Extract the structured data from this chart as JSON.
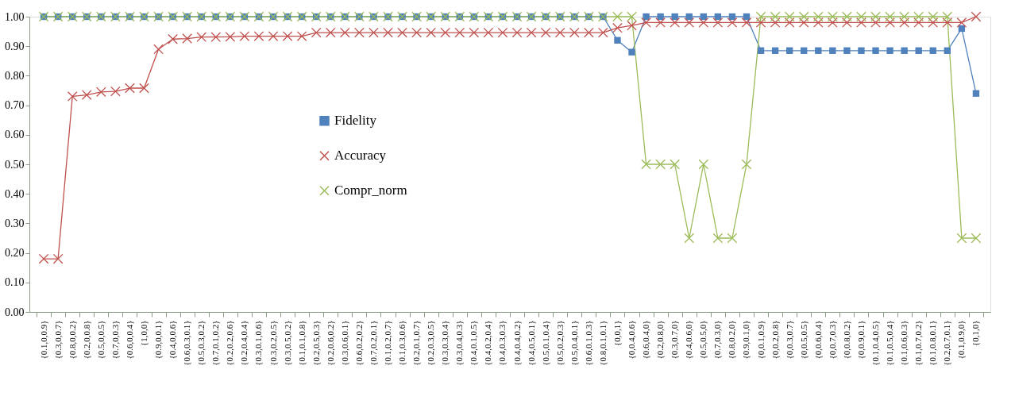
{
  "chart_data": {
    "type": "line",
    "categories": [
      "{0.1,0,0.9}",
      "{0.3,0,0.7}",
      "{0.8,0,0.2}",
      "{0.2,0,0.8}",
      "{0.5,0,0.5}",
      "{0.7,0,0.3}",
      "{0.6,0,0.4}",
      "{1,0,0}",
      "{0.9,0,0.1}",
      "{0.4,0,0.6}",
      "{0.6,0.3,0.1}",
      "{0.5,0.3,0.2}",
      "{0.7,0.1,0.2}",
      "{0.2,0.2,0.6}",
      "{0.2,0.4,0.4}",
      "{0.3,0.1,0.6}",
      "{0.3,0.2,0.5}",
      "{0.3,0.5,0.2}",
      "{0.1,0.1,0.8}",
      "{0.2,0.5,0.3}",
      "{0.2,0.6,0.2}",
      "{0.3,0.6,0.1}",
      "{0.6,0.2,0.2}",
      "{0.7,0.2,0.1}",
      "{0.1,0.2,0.7}",
      "{0.1,0.3,0.6}",
      "{0.2,0.1,0.7}",
      "{0.2,0.3,0.5}",
      "{0.3,0.3,0.4}",
      "{0.3,0.4,0.3}",
      "{0.4,0.1,0.5}",
      "{0.4,0.2,0.4}",
      "{0.4,0.3,0.3}",
      "{0.4,0.4,0.2}",
      "{0.4,0.5,0.1}",
      "{0.5,0.1,0.4}",
      "{0.5,0.2,0.3}",
      "{0.5,0.4,0.1}",
      "{0.6,0.1,0.3}",
      "{0.8,0.1,0.1}",
      "{0,0,1}",
      "{0,0.4,0.6}",
      "{0.6,0.4,0}",
      "{0.2,0.8,0}",
      "{0.3,0.7,0}",
      "{0.4,0.6,0}",
      "{0.5,0.5,0}",
      "{0.7,0.3,0}",
      "{0.8,0.2,0}",
      "{0.9,0.1,0}",
      "{0,0.1,0.9}",
      "{0,0.2,0.8}",
      "{0,0.3,0.7}",
      "{0,0.5,0.5}",
      "{0,0.6,0.4}",
      "{0,0.7,0.3}",
      "{0,0.8,0.2}",
      "{0,0.9,0.1}",
      "{0.1,0.4,0.5}",
      "{0.1,0.5,0.4}",
      "{0.1,0.6,0.3}",
      "{0.1,0.7,0.2}",
      "{0.1,0.8,0.1}",
      "{0.2,0.7,0.1}",
      "{0.1,0.9,0}",
      "{0,1,0}"
    ],
    "series": [
      {
        "name": "Fidelity",
        "color": "#4f81bd",
        "marker": "square",
        "values": [
          1,
          1,
          1,
          1,
          1,
          1,
          1,
          1,
          1,
          1,
          1,
          1,
          1,
          1,
          1,
          1,
          1,
          1,
          1,
          1,
          1,
          1,
          1,
          1,
          1,
          1,
          1,
          1,
          1,
          1,
          1,
          1,
          1,
          1,
          1,
          1,
          1,
          1,
          1,
          1,
          0.92,
          0.88,
          1,
          1,
          1,
          1,
          1,
          1,
          1,
          1,
          0.885,
          0.885,
          0.885,
          0.885,
          0.885,
          0.885,
          0.885,
          0.885,
          0.885,
          0.885,
          0.885,
          0.885,
          0.885,
          0.885,
          0.96,
          0.74
        ]
      },
      {
        "name": "Accuracy",
        "color": "#c0504d",
        "marker": "cross",
        "values": [
          0.18,
          0.18,
          0.73,
          0.735,
          0.745,
          0.747,
          0.758,
          0.758,
          0.89,
          0.924,
          0.926,
          0.931,
          0.931,
          0.932,
          0.934,
          0.934,
          0.934,
          0.934,
          0.934,
          0.946,
          0.946,
          0.946,
          0.946,
          0.946,
          0.946,
          0.946,
          0.946,
          0.946,
          0.946,
          0.946,
          0.946,
          0.946,
          0.946,
          0.946,
          0.946,
          0.946,
          0.946,
          0.946,
          0.946,
          0.946,
          0.962,
          0.97,
          0.98,
          0.98,
          0.98,
          0.98,
          0.98,
          0.98,
          0.98,
          0.98,
          0.98,
          0.98,
          0.98,
          0.98,
          0.98,
          0.98,
          0.98,
          0.98,
          0.98,
          0.98,
          0.98,
          0.98,
          0.98,
          0.98,
          0.98,
          1
        ]
      },
      {
        "name": "Compr_norm",
        "color": "#9bbb59",
        "marker": "cross",
        "values": [
          1,
          1,
          1,
          1,
          1,
          1,
          1,
          1,
          1,
          1,
          1,
          1,
          1,
          1,
          1,
          1,
          1,
          1,
          1,
          1,
          1,
          1,
          1,
          1,
          1,
          1,
          1,
          1,
          1,
          1,
          1,
          1,
          1,
          1,
          1,
          1,
          1,
          1,
          1,
          1,
          1,
          1,
          0.5,
          0.5,
          0.5,
          0.25,
          0.5,
          0.25,
          0.25,
          0.5,
          1,
          1,
          1,
          1,
          1,
          1,
          1,
          1,
          1,
          1,
          1,
          1,
          1,
          1,
          0.25,
          0.25
        ]
      }
    ],
    "ylim": [
      0,
      1
    ],
    "yticks": [
      {
        "value": 0,
        "label": "0.00"
      },
      {
        "value": 0.1,
        "label": "0.10"
      },
      {
        "value": 0.2,
        "label": "0.20"
      },
      {
        "value": 0.3,
        "label": "0.30"
      },
      {
        "value": 0.4,
        "label": "0.40"
      },
      {
        "value": 0.5,
        "label": "0.50"
      },
      {
        "value": 0.6,
        "label": "0.60"
      },
      {
        "value": 0.7,
        "label": "0.70"
      },
      {
        "value": 0.8,
        "label": "0.80"
      },
      {
        "value": 0.9,
        "label": "0.90"
      },
      {
        "value": 1,
        "label": "1.00"
      }
    ],
    "grid": false,
    "legend": "center",
    "line_style": "solid"
  }
}
